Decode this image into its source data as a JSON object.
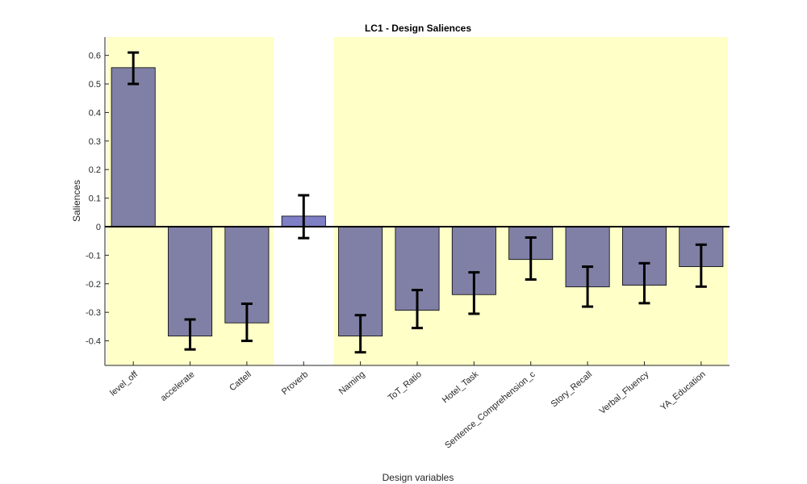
{
  "chart_data": {
    "type": "bar",
    "title": "LC1 - Design Saliences",
    "xlabel": "Design variables",
    "ylabel": "Saliences",
    "categories": [
      "level_off",
      "accelerate",
      "Cattell",
      "Proverb",
      "Naming",
      "ToT_Ratio",
      "Hotel_Task",
      "Sentence_Comprehension_c",
      "Story_Recall",
      "Verbal_Fluency",
      "YA_Education"
    ],
    "values": [
      0.557,
      -0.383,
      -0.337,
      0.037,
      -0.383,
      -0.293,
      -0.238,
      -0.115,
      -0.211,
      -0.205,
      -0.14
    ],
    "error_low": [
      0.5,
      -0.43,
      -0.4,
      -0.04,
      -0.44,
      -0.355,
      -0.305,
      -0.185,
      -0.28,
      -0.268,
      -0.21
    ],
    "error_high": [
      0.61,
      -0.325,
      -0.27,
      0.11,
      -0.31,
      -0.222,
      -0.16,
      -0.038,
      -0.14,
      -0.128,
      -0.063
    ],
    "significant": [
      true,
      true,
      true,
      false,
      true,
      true,
      true,
      true,
      true,
      true,
      true
    ],
    "yticks": [
      -0.4,
      -0.3,
      -0.2,
      -0.1,
      0,
      0.1,
      0.2,
      0.3,
      0.4,
      0.5,
      0.6
    ],
    "ytick_labels": [
      "-0.4",
      "-0.3",
      "-0.2",
      "-0.1",
      "0",
      "0.1",
      "0.2",
      "0.3",
      "0.4",
      "0.5",
      "0.6"
    ],
    "ylim": [
      -0.486,
      0.664
    ],
    "grid": false,
    "colors": {
      "bar": "#8080a6",
      "bar_highlight": "#7f7fc6",
      "significance_band": "#ffffc8",
      "error_bar": "#000000",
      "axis": "#262626"
    }
  }
}
